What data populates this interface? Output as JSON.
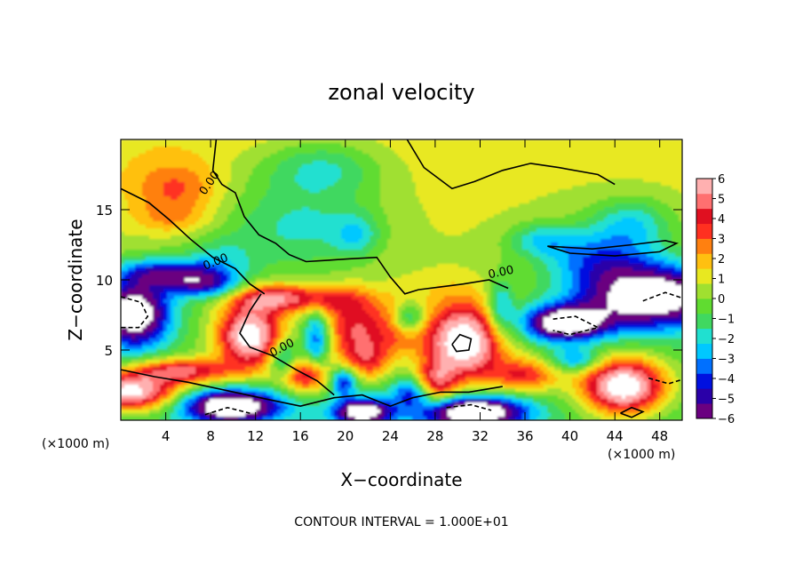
{
  "chart_data": {
    "type": "heatmap",
    "title": "zonal velocity",
    "xlabel": "X−coordinate",
    "ylabel": "Z−coordinate",
    "x_unit_left": "(×1000 m)",
    "x_unit_right": "(×1000 m)",
    "footer": "CONTOUR INTERVAL = 1.000E+01",
    "xlim": [
      0,
      50
    ],
    "ylim": [
      0,
      20
    ],
    "x_ticks": [
      4,
      8,
      12,
      16,
      20,
      24,
      28,
      32,
      36,
      40,
      44,
      48
    ],
    "y_ticks": [
      5,
      10,
      15
    ],
    "colorbar": {
      "min": -6,
      "max": 6,
      "ticks": [
        "6",
        "5",
        "4",
        "3",
        "2",
        "1",
        "0",
        "−1",
        "−2",
        "−3",
        "−4",
        "−5",
        "−6"
      ],
      "colors": [
        "#6a0080",
        "#2a00a8",
        "#0010e0",
        "#0070ff",
        "#00c8ff",
        "#20e0d0",
        "#40d860",
        "#60dc30",
        "#a0e030",
        "#e8e820",
        "#ffc010",
        "#ff8010",
        "#ff3020",
        "#e01020",
        "#ff7070",
        "#ffb0b0"
      ]
    },
    "contour_labels": [
      "0.00",
      "0.00",
      "0.00",
      "0.00"
    ],
    "blobs": [
      {
        "x": 30.5,
        "y": 5.5,
        "rx": 3.6,
        "ry": 2.8,
        "v": 8
      },
      {
        "x": 11.5,
        "y": 6.0,
        "rx": 2.8,
        "ry": 2.2,
        "v": 7.5
      },
      {
        "x": 1.2,
        "y": 7.6,
        "rx": 3.2,
        "ry": 2.4,
        "v": -8
      },
      {
        "x": 0.8,
        "y": 2.0,
        "rx": 4.2,
        "ry": 1.3,
        "v": 7.5
      },
      {
        "x": 9.8,
        "y": 1.0,
        "rx": 4.5,
        "ry": 1.2,
        "v": -8
      },
      {
        "x": 21.5,
        "y": 0.6,
        "rx": 2.5,
        "ry": 0.9,
        "v": -7
      },
      {
        "x": 31.5,
        "y": 0.6,
        "rx": 4.5,
        "ry": 1.1,
        "v": -8
      },
      {
        "x": 44.8,
        "y": 2.4,
        "rx": 3.6,
        "ry": 1.9,
        "v": 8
      },
      {
        "x": 47.5,
        "y": 8.8,
        "rx": 6.5,
        "ry": 2.3,
        "v": -8
      },
      {
        "x": 39.5,
        "y": 6.9,
        "rx": 3.8,
        "ry": 1.3,
        "v": -7.5
      },
      {
        "x": 21.0,
        "y": 6.5,
        "rx": 3.0,
        "ry": 2.2,
        "v": 4.5
      },
      {
        "x": 25.0,
        "y": 6.8,
        "rx": 1.8,
        "ry": 1.8,
        "v": 3.5
      },
      {
        "x": 22.0,
        "y": 4.2,
        "rx": 2.2,
        "ry": 1.5,
        "v": 3.5
      },
      {
        "x": 16.5,
        "y": 3.2,
        "rx": 2.4,
        "ry": 1.3,
        "v": 5
      },
      {
        "x": 5.5,
        "y": 3.5,
        "rx": 4.5,
        "ry": 0.9,
        "v": 5
      },
      {
        "x": 13.5,
        "y": 8.7,
        "rx": 3.5,
        "ry": 1.0,
        "v": 4.5
      },
      {
        "x": 18.5,
        "y": 8.6,
        "rx": 3.5,
        "ry": 1.0,
        "v": 3
      },
      {
        "x": 36.0,
        "y": 3.2,
        "rx": 3.0,
        "ry": 1.2,
        "v": 4
      },
      {
        "x": 28.0,
        "y": 2.5,
        "rx": 1.8,
        "ry": 1.5,
        "v": 4.5
      },
      {
        "x": 40.5,
        "y": 4.3,
        "rx": 2.2,
        "ry": 0.8,
        "v": -3
      },
      {
        "x": 17.5,
        "y": 5.8,
        "rx": 1.2,
        "ry": 2.2,
        "v": -4
      },
      {
        "x": 19.8,
        "y": 2.8,
        "rx": 1.2,
        "ry": 1.0,
        "v": -4.5
      },
      {
        "x": 14.5,
        "y": 4.3,
        "rx": 1.3,
        "ry": 1.3,
        "v": -3.5
      },
      {
        "x": 25.5,
        "y": 7.2,
        "rx": 1.5,
        "ry": 1.2,
        "v": -5
      },
      {
        "x": 26.0,
        "y": 2.0,
        "rx": 1.8,
        "ry": 1.0,
        "v": -3.5
      },
      {
        "x": 33.8,
        "y": 8.0,
        "rx": 1.2,
        "ry": 2.0,
        "v": -3
      },
      {
        "x": 4.5,
        "y": 10.5,
        "rx": 4.5,
        "ry": 1.0,
        "v": -4.5
      },
      {
        "x": 7.5,
        "y": 9.6,
        "rx": 3.2,
        "ry": 0.9,
        "v": -4
      },
      {
        "x": 42.5,
        "y": 11.5,
        "rx": 4.5,
        "ry": 2.0,
        "v": -3
      },
      {
        "x": 45.5,
        "y": 14.0,
        "rx": 3.5,
        "ry": 1.8,
        "v": -2.5
      },
      {
        "x": 37.5,
        "y": 12.8,
        "rx": 3.0,
        "ry": 1.2,
        "v": -2.5
      },
      {
        "x": 16.5,
        "y": 13.5,
        "rx": 6.0,
        "ry": 2.5,
        "v": -1.5
      },
      {
        "x": 18.0,
        "y": 18.0,
        "rx": 5.0,
        "ry": 2.0,
        "v": -2.0
      },
      {
        "x": 21.0,
        "y": 13.2,
        "rx": 2.0,
        "ry": 1.5,
        "v": -2.0
      },
      {
        "x": 5.0,
        "y": 16.5,
        "rx": 4.0,
        "ry": 2.0,
        "v": 2.5
      },
      {
        "x": 4.5,
        "y": 14.3,
        "rx": 3.5,
        "ry": 1.2,
        "v": 1.5
      },
      {
        "x": 9.0,
        "y": 11.5,
        "rx": 3.0,
        "ry": 1.5,
        "v": -1.5
      },
      {
        "x": 28.0,
        "y": 9.5,
        "rx": 4.0,
        "ry": 1.2,
        "v": 0.5
      }
    ]
  }
}
